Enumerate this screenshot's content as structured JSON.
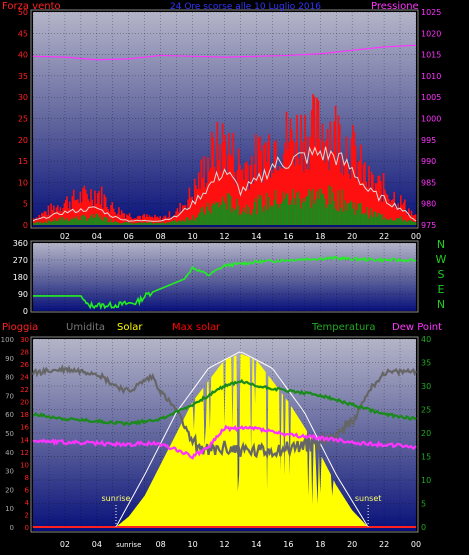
{
  "chart_data": [
    {
      "type": "area",
      "title": "24 Ore scorse alle 10 Luglio 2016",
      "left_label": "Forza vento",
      "right_label": "Pressione",
      "colors": {
        "left_label": "#ff2020",
        "right_label": "#ff33ff",
        "title": "#3333ff"
      },
      "ylim_left": [
        0,
        50
      ],
      "yticks_left": [
        0,
        5,
        10,
        15,
        20,
        25,
        30,
        35,
        40,
        45,
        50
      ],
      "ylim_right": [
        975,
        1025
      ],
      "yticks_right": [
        975,
        980,
        985,
        990,
        995,
        1000,
        1005,
        1010,
        1015,
        1020,
        1025
      ],
      "xticks": [
        "02",
        "04",
        "06",
        "08",
        "10",
        "12",
        "14",
        "16",
        "18",
        "20",
        "22",
        "00"
      ],
      "pressure_hpa": [
        {
          "x": 0,
          "y": 1014.6
        },
        {
          "x": 2,
          "y": 1014.4
        },
        {
          "x": 4,
          "y": 1013.8
        },
        {
          "x": 6,
          "y": 1014.0
        },
        {
          "x": 8,
          "y": 1014.8
        },
        {
          "x": 10,
          "y": 1014.6
        },
        {
          "x": 12,
          "y": 1014.4
        },
        {
          "x": 14,
          "y": 1014.6
        },
        {
          "x": 16,
          "y": 1014.8
        },
        {
          "x": 18,
          "y": 1015.2
        },
        {
          "x": 20,
          "y": 1016.0
        },
        {
          "x": 22,
          "y": 1016.8
        },
        {
          "x": 24,
          "y": 1017.2
        }
      ],
      "gust_envelope": [
        {
          "x": 0,
          "y": 2
        },
        {
          "x": 2,
          "y": 7
        },
        {
          "x": 4,
          "y": 10
        },
        {
          "x": 5,
          "y": 5
        },
        {
          "x": 6,
          "y": 3
        },
        {
          "x": 8,
          "y": 2
        },
        {
          "x": 9,
          "y": 4
        },
        {
          "x": 10,
          "y": 10
        },
        {
          "x": 11,
          "y": 20
        },
        {
          "x": 12,
          "y": 25
        },
        {
          "x": 13,
          "y": 17
        },
        {
          "x": 14,
          "y": 20
        },
        {
          "x": 15,
          "y": 25
        },
        {
          "x": 16,
          "y": 26
        },
        {
          "x": 17,
          "y": 28
        },
        {
          "x": 18,
          "y": 29
        },
        {
          "x": 19,
          "y": 28
        },
        {
          "x": 20,
          "y": 22
        },
        {
          "x": 21,
          "y": 13
        },
        {
          "x": 22,
          "y": 11
        },
        {
          "x": 23,
          "y": 7
        },
        {
          "x": 24,
          "y": 2
        }
      ],
      "wind_avg": [
        {
          "x": 0,
          "y": 1
        },
        {
          "x": 2,
          "y": 3
        },
        {
          "x": 4,
          "y": 4
        },
        {
          "x": 5,
          "y": 2
        },
        {
          "x": 6,
          "y": 1
        },
        {
          "x": 8,
          "y": 1
        },
        {
          "x": 9,
          "y": 2
        },
        {
          "x": 10,
          "y": 5
        },
        {
          "x": 11,
          "y": 9
        },
        {
          "x": 12,
          "y": 13
        },
        {
          "x": 13,
          "y": 8
        },
        {
          "x": 14,
          "y": 10
        },
        {
          "x": 15,
          "y": 14
        },
        {
          "x": 16,
          "y": 15
        },
        {
          "x": 17,
          "y": 16
        },
        {
          "x": 18,
          "y": 17
        },
        {
          "x": 19,
          "y": 16
        },
        {
          "x": 20,
          "y": 13
        },
        {
          "x": 21,
          "y": 8
        },
        {
          "x": 22,
          "y": 6
        },
        {
          "x": 23,
          "y": 4
        },
        {
          "x": 24,
          "y": 1
        }
      ],
      "wind_speed": [
        {
          "x": 0,
          "y": 0.5
        },
        {
          "x": 2,
          "y": 1.5
        },
        {
          "x": 4,
          "y": 2
        },
        {
          "x": 5,
          "y": 1
        },
        {
          "x": 6,
          "y": 0.5
        },
        {
          "x": 8,
          "y": 0.5
        },
        {
          "x": 9,
          "y": 1
        },
        {
          "x": 10,
          "y": 2
        },
        {
          "x": 11,
          "y": 4
        },
        {
          "x": 12,
          "y": 6
        },
        {
          "x": 13,
          "y": 4
        },
        {
          "x": 14,
          "y": 5
        },
        {
          "x": 15,
          "y": 6
        },
        {
          "x": 16,
          "y": 6.5
        },
        {
          "x": 17,
          "y": 7
        },
        {
          "x": 18,
          "y": 7
        },
        {
          "x": 19,
          "y": 6.5
        },
        {
          "x": 20,
          "y": 5
        },
        {
          "x": 21,
          "y": 3
        },
        {
          "x": 22,
          "y": 2
        },
        {
          "x": 23,
          "y": 1.5
        },
        {
          "x": 24,
          "y": 0.5
        }
      ]
    },
    {
      "type": "line",
      "series_name": "",
      "ylim": [
        0,
        360
      ],
      "yticks": [
        0,
        90,
        180,
        270,
        360
      ],
      "compass_letters": [
        "N",
        "W",
        "S",
        "E",
        "N"
      ],
      "compass_color": "#22cc22",
      "wind_direction_deg": [
        {
          "x": 0,
          "y": 80
        },
        {
          "x": 3,
          "y": 80
        },
        {
          "x": 3.4,
          "y": 30
        },
        {
          "x": 5,
          "y": 30
        },
        {
          "x": 6.5,
          "y": 45
        },
        {
          "x": 7.2,
          "y": 90
        },
        {
          "x": 9.5,
          "y": 170
        },
        {
          "x": 10,
          "y": 230
        },
        {
          "x": 11,
          "y": 190
        },
        {
          "x": 12,
          "y": 240
        },
        {
          "x": 14,
          "y": 260
        },
        {
          "x": 17,
          "y": 275
        },
        {
          "x": 19,
          "y": 280
        },
        {
          "x": 20,
          "y": 275
        },
        {
          "x": 22,
          "y": 270
        },
        {
          "x": 24,
          "y": 268
        }
      ]
    },
    {
      "type": "area",
      "labels": [
        "Pioggia",
        "Umidita",
        "Solar",
        "Max solar",
        "Temperatura",
        "Dew Point"
      ],
      "label_colors": [
        "#ff2020",
        "#777777",
        "#ffff00",
        "#ff0000",
        "#22aa22",
        "#ff33ff"
      ],
      "ylim_left_outer": [
        0,
        100
      ],
      "yticks_left_outer": [
        0,
        10,
        20,
        30,
        40,
        50,
        60,
        70,
        80,
        90,
        100
      ],
      "ylim_left_inner": [
        0,
        30
      ],
      "yticks_left_inner": [
        0,
        2,
        4,
        6,
        8,
        10,
        12,
        14,
        16,
        18,
        20,
        22,
        24,
        26,
        28,
        30
      ],
      "ylim_right": [
        0,
        40
      ],
      "yticks_right": [
        0,
        5,
        10,
        15,
        20,
        25,
        30,
        35,
        40
      ],
      "xticks": [
        "02",
        "04",
        "sunrise",
        "08",
        "10",
        "12",
        "14",
        "16",
        "18",
        "20",
        "22",
        "00"
      ],
      "sunrise_label": "sunrise",
      "sunset_label": "sunset",
      "humidity_pct": [
        {
          "x": 0,
          "y": 82
        },
        {
          "x": 2,
          "y": 84
        },
        {
          "x": 3,
          "y": 83
        },
        {
          "x": 4,
          "y": 82
        },
        {
          "x": 5,
          "y": 76
        },
        {
          "x": 6,
          "y": 72
        },
        {
          "x": 7,
          "y": 78
        },
        {
          "x": 7.5,
          "y": 80
        },
        {
          "x": 8,
          "y": 72
        },
        {
          "x": 9,
          "y": 62
        },
        {
          "x": 10,
          "y": 45
        },
        {
          "x": 11,
          "y": 40
        },
        {
          "x": 12,
          "y": 42
        },
        {
          "x": 14,
          "y": 40
        },
        {
          "x": 16,
          "y": 42
        },
        {
          "x": 18,
          "y": 45
        },
        {
          "x": 20,
          "y": 55
        },
        {
          "x": 21,
          "y": 72
        },
        {
          "x": 22,
          "y": 82
        },
        {
          "x": 24,
          "y": 83
        }
      ],
      "temperature_c": [
        {
          "x": 0,
          "y": 24
        },
        {
          "x": 2,
          "y": 23
        },
        {
          "x": 4,
          "y": 22.5
        },
        {
          "x": 6,
          "y": 22
        },
        {
          "x": 8,
          "y": 23
        },
        {
          "x": 10,
          "y": 26
        },
        {
          "x": 11,
          "y": 28
        },
        {
          "x": 12,
          "y": 30
        },
        {
          "x": 13,
          "y": 31
        },
        {
          "x": 14,
          "y": 30
        },
        {
          "x": 16,
          "y": 29
        },
        {
          "x": 18,
          "y": 28
        },
        {
          "x": 20,
          "y": 26
        },
        {
          "x": 22,
          "y": 24
        },
        {
          "x": 24,
          "y": 23
        }
      ],
      "dew_point_c": [
        {
          "x": 0,
          "y": 18.5
        },
        {
          "x": 2,
          "y": 18
        },
        {
          "x": 4,
          "y": 17.8
        },
        {
          "x": 6,
          "y": 17.5
        },
        {
          "x": 7,
          "y": 17.8
        },
        {
          "x": 8,
          "y": 17.6
        },
        {
          "x": 9,
          "y": 16.5
        },
        {
          "x": 10,
          "y": 15
        },
        {
          "x": 11,
          "y": 17
        },
        {
          "x": 12,
          "y": 21
        },
        {
          "x": 14,
          "y": 21
        },
        {
          "x": 16,
          "y": 19.5
        },
        {
          "x": 18,
          "y": 19
        },
        {
          "x": 20,
          "y": 18
        },
        {
          "x": 22,
          "y": 17.5
        },
        {
          "x": 24,
          "y": 17
        }
      ],
      "solar_wm2": [
        {
          "x": 0,
          "y": 0
        },
        {
          "x": 5.2,
          "y": 0
        },
        {
          "x": 6,
          "y": 50
        },
        {
          "x": 7,
          "y": 150
        },
        {
          "x": 8,
          "y": 300
        },
        {
          "x": 9,
          "y": 450
        },
        {
          "x": 10,
          "y": 600
        },
        {
          "x": 11,
          "y": 700
        },
        {
          "x": 12,
          "y": 800
        },
        {
          "x": 13,
          "y": 830
        },
        {
          "x": 14,
          "y": 800
        },
        {
          "x": 15,
          "y": 700
        },
        {
          "x": 16,
          "y": 600
        },
        {
          "x": 17,
          "y": 480
        },
        {
          "x": 18,
          "y": 350
        },
        {
          "x": 19,
          "y": 200
        },
        {
          "x": 20,
          "y": 80
        },
        {
          "x": 21,
          "y": 0
        },
        {
          "x": 24,
          "y": 0
        }
      ],
      "max_solar_wm2": [
        {
          "x": 5.2,
          "y": 0
        },
        {
          "x": 7,
          "y": 250
        },
        {
          "x": 9,
          "y": 550
        },
        {
          "x": 11,
          "y": 760
        },
        {
          "x": 13,
          "y": 840
        },
        {
          "x": 15,
          "y": 760
        },
        {
          "x": 17,
          "y": 550
        },
        {
          "x": 19,
          "y": 250
        },
        {
          "x": 21,
          "y": 0
        }
      ]
    }
  ]
}
